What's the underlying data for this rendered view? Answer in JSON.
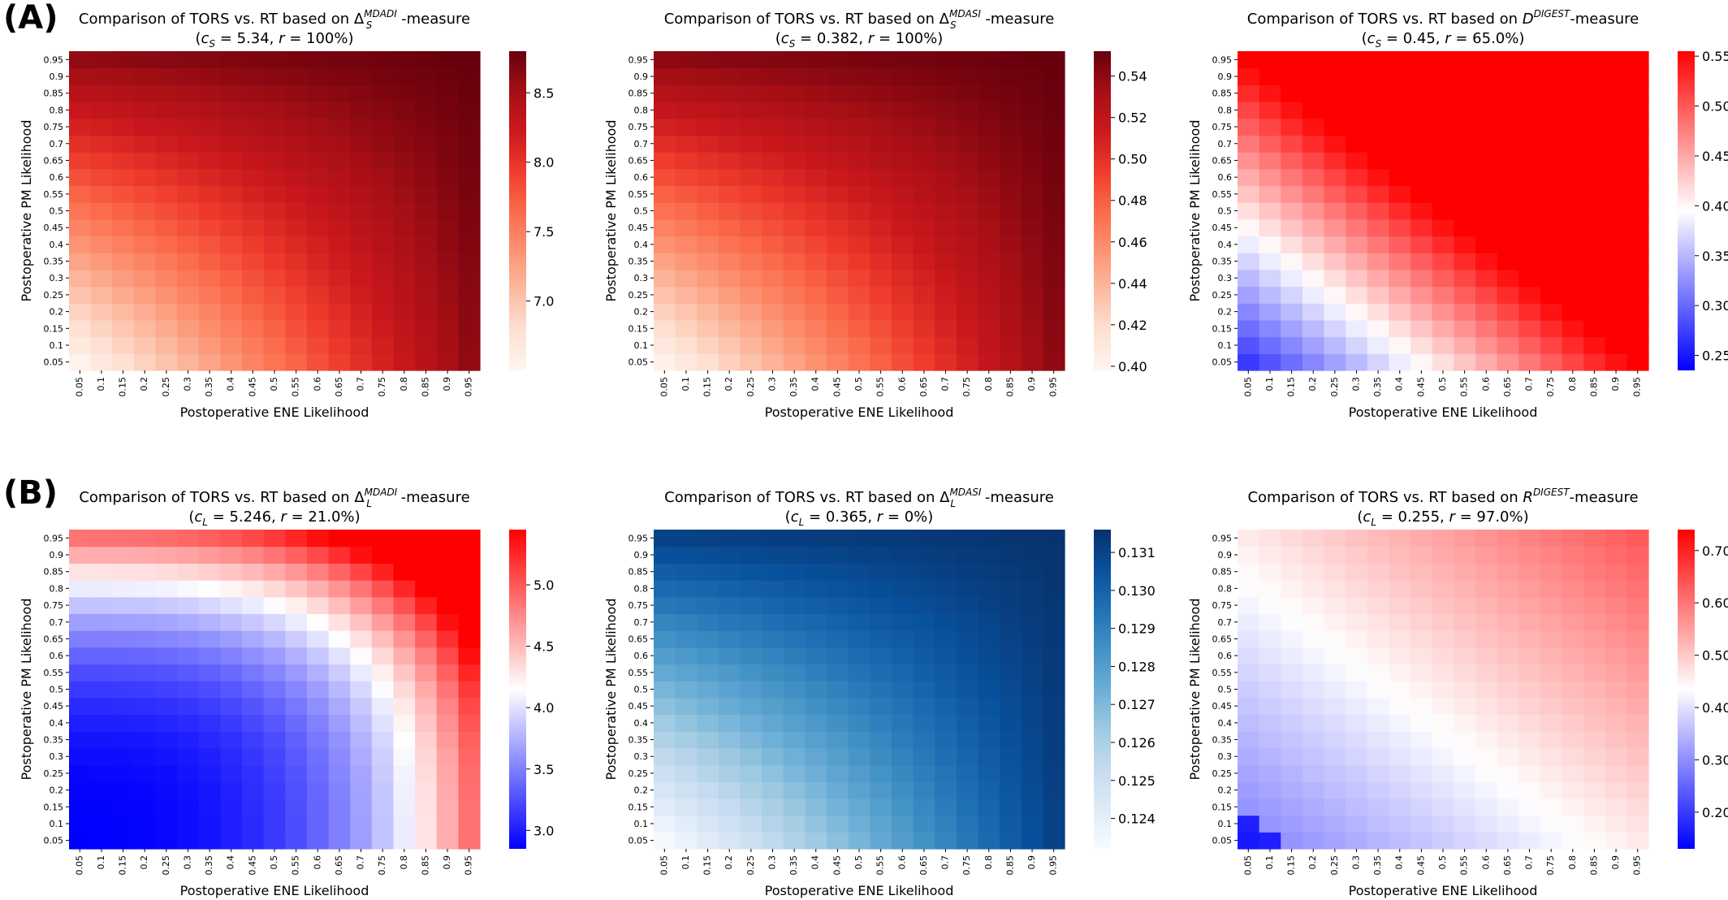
{
  "panel_labels": [
    "(A)",
    "(B)"
  ],
  "chart_data": [
    {
      "type": "heatmap",
      "title_pre": "Comparison of TORS vs. RT based on ",
      "title_sym": "Δ",
      "title_sub": "S",
      "title_sup": "MDADI",
      "title_post": "-measure",
      "subtitle_c": "c",
      "subtitle_c_sub": "S",
      "subtitle_c_val": " = 5.34, ",
      "subtitle_r": "r",
      "subtitle_r_val": " = 100%)",
      "xlabel": "Postoperative ENE Likelihood",
      "ylabel": "Postoperative PM Likelihood",
      "x": [
        "0.05",
        "0.1",
        "0.15",
        "0.2",
        "0.25",
        "0.3",
        "0.35",
        "0.4",
        "0.45",
        "0.5",
        "0.55",
        "0.6",
        "0.65",
        "0.7",
        "0.75",
        "0.8",
        "0.85",
        "0.9",
        "0.95"
      ],
      "y": [
        "0.05",
        "0.1",
        "0.15",
        "0.2",
        "0.25",
        "0.3",
        "0.35",
        "0.4",
        "0.45",
        "0.5",
        "0.55",
        "0.6",
        "0.65",
        "0.7",
        "0.75",
        "0.8",
        "0.85",
        "0.9",
        "0.95"
      ],
      "model": "bilinear",
      "corners": {
        "x0y0": 6.55,
        "x1y0": 8.6,
        "x0y1": 8.6,
        "x1y1": 8.8
      },
      "colormap": "Reds",
      "vmin": 6.5,
      "vmax": 8.8,
      "colorbar_ticks": [
        7.0,
        7.5,
        8.0,
        8.5
      ]
    },
    {
      "type": "heatmap",
      "title_pre": "Comparison of TORS vs. RT based on ",
      "title_sym": "Δ",
      "title_sub": "S",
      "title_sup": "MDASI",
      "title_post": "-measure",
      "subtitle_c": "c",
      "subtitle_c_sub": "S",
      "subtitle_c_val": " = 0.382, ",
      "subtitle_r": "r",
      "subtitle_r_val": " = 100%)",
      "xlabel": "Postoperative ENE Likelihood",
      "ylabel": "Postoperative PM Likelihood",
      "x": [
        "0.05",
        "0.1",
        "0.15",
        "0.2",
        "0.25",
        "0.3",
        "0.35",
        "0.4",
        "0.45",
        "0.5",
        "0.55",
        "0.6",
        "0.65",
        "0.7",
        "0.75",
        "0.8",
        "0.85",
        "0.9",
        "0.95"
      ],
      "y": [
        "0.05",
        "0.1",
        "0.15",
        "0.2",
        "0.25",
        "0.3",
        "0.35",
        "0.4",
        "0.45",
        "0.5",
        "0.55",
        "0.6",
        "0.65",
        "0.7",
        "0.75",
        "0.8",
        "0.85",
        "0.9",
        "0.95"
      ],
      "model": "bilinear",
      "corners": {
        "x0y0": 0.402,
        "x1y0": 0.54,
        "x0y1": 0.54,
        "x1y1": 0.552
      },
      "colormap": "Reds",
      "vmin": 0.398,
      "vmax": 0.552,
      "colorbar_ticks": [
        0.4,
        0.42,
        0.44,
        0.46,
        0.48,
        0.5,
        0.52,
        0.54
      ]
    },
    {
      "type": "heatmap",
      "title_pre": "Comparison of TORS vs. RT based on ",
      "title_sym": "D",
      "title_sub": "",
      "title_sup": "DIGEST",
      "title_post": "-measure",
      "subtitle_c": "c",
      "subtitle_c_sub": "S",
      "subtitle_c_val": " = 0.45, ",
      "subtitle_r": "r",
      "subtitle_r_val": " = 65.0%)",
      "xlabel": "Postoperative ENE Likelihood",
      "ylabel": "Postoperative PM Likelihood",
      "x": [
        "0.05",
        "0.1",
        "0.15",
        "0.2",
        "0.25",
        "0.3",
        "0.35",
        "0.4",
        "0.45",
        "0.5",
        "0.55",
        "0.6",
        "0.65",
        "0.7",
        "0.75",
        "0.8",
        "0.85",
        "0.9",
        "0.95"
      ],
      "y": [
        "0.05",
        "0.1",
        "0.15",
        "0.2",
        "0.25",
        "0.3",
        "0.35",
        "0.4",
        "0.45",
        "0.5",
        "0.55",
        "0.6",
        "0.65",
        "0.7",
        "0.75",
        "0.8",
        "0.85",
        "0.9",
        "0.95"
      ],
      "model": "sum",
      "base": 0.24,
      "scale": 0.32,
      "exponent": 1.0,
      "threshold": 0.8,
      "jump": 0.0,
      "colormap": "bwr",
      "vmin": 0.235,
      "vmax": 0.555,
      "colorbar_ticks": [
        0.25,
        0.3,
        0.35,
        0.4,
        0.45,
        0.5,
        0.55
      ]
    },
    {
      "type": "heatmap",
      "title_pre": "Comparison of TORS vs. RT based on ",
      "title_sym": "Δ",
      "title_sub": "L",
      "title_sup": "MDADI",
      "title_post": "-measure",
      "subtitle_c": "c",
      "subtitle_c_sub": "L",
      "subtitle_c_val": " = 5.246, ",
      "subtitle_r": "r",
      "subtitle_r_val": " = 21.0%)",
      "xlabel": "Postoperative ENE Likelihood",
      "ylabel": "Postoperative PM Likelihood",
      "x": [
        "0.05",
        "0.1",
        "0.15",
        "0.2",
        "0.25",
        "0.3",
        "0.35",
        "0.4",
        "0.45",
        "0.5",
        "0.55",
        "0.6",
        "0.65",
        "0.7",
        "0.75",
        "0.8",
        "0.85",
        "0.9",
        "0.95"
      ],
      "y": [
        "0.05",
        "0.1",
        "0.15",
        "0.2",
        "0.25",
        "0.3",
        "0.35",
        "0.4",
        "0.45",
        "0.5",
        "0.55",
        "0.6",
        "0.65",
        "0.7",
        "0.75",
        "0.8",
        "0.85",
        "0.9",
        "0.95"
      ],
      "model": "powersum",
      "base": 2.85,
      "scale": 2.35,
      "exponent": 3.0,
      "threshold": 0.0,
      "jump": 0.0,
      "colormap": "bwr",
      "vmin": 2.85,
      "vmax": 5.45,
      "colorbar_ticks": [
        3.0,
        3.5,
        4.0,
        4.5,
        5.0
      ]
    },
    {
      "type": "heatmap",
      "title_pre": "Comparison of TORS vs. RT based on ",
      "title_sym": "Δ",
      "title_sub": "L",
      "title_sup": "MDASI",
      "title_post": "-measure",
      "subtitle_c": "c",
      "subtitle_c_sub": "L",
      "subtitle_c_val": " = 0.365, ",
      "subtitle_r": "r",
      "subtitle_r_val": " = 0%)",
      "xlabel": "Postoperative ENE Likelihood",
      "ylabel": "Postoperative PM Likelihood",
      "x": [
        "0.05",
        "0.1",
        "0.15",
        "0.2",
        "0.25",
        "0.3",
        "0.35",
        "0.4",
        "0.45",
        "0.5",
        "0.55",
        "0.6",
        "0.65",
        "0.7",
        "0.75",
        "0.8",
        "0.85",
        "0.9",
        "0.95"
      ],
      "y": [
        "0.05",
        "0.1",
        "0.15",
        "0.2",
        "0.25",
        "0.3",
        "0.35",
        "0.4",
        "0.45",
        "0.5",
        "0.55",
        "0.6",
        "0.65",
        "0.7",
        "0.75",
        "0.8",
        "0.85",
        "0.9",
        "0.95"
      ],
      "model": "bilinear",
      "corners": {
        "x0y0": 0.1233,
        "x1y0": 0.131,
        "x0y1": 0.131,
        "x1y1": 0.1315
      },
      "colormap": "Blues",
      "vmin": 0.1232,
      "vmax": 0.1316,
      "colorbar_ticks": [
        0.124,
        0.125,
        0.126,
        0.127,
        0.128,
        0.129,
        0.13,
        0.131
      ]
    },
    {
      "type": "heatmap",
      "title_pre": "Comparison of TORS vs. RT based on ",
      "title_sym": "R",
      "title_sub": "",
      "title_sup": "DIGEST",
      "title_post": "-measure",
      "subtitle_c": "c",
      "subtitle_c_sub": "L",
      "subtitle_c_val": " = 0.255, ",
      "subtitle_r": "r",
      "subtitle_r_val": " = 97.0%)",
      "xlabel": "Postoperative ENE Likelihood",
      "ylabel": "Postoperative PM Likelihood",
      "x": [
        "0.05",
        "0.1",
        "0.15",
        "0.2",
        "0.25",
        "0.3",
        "0.35",
        "0.4",
        "0.45",
        "0.5",
        "0.55",
        "0.6",
        "0.65",
        "0.7",
        "0.75",
        "0.8",
        "0.85",
        "0.9",
        "0.95"
      ],
      "y": [
        "0.05",
        "0.1",
        "0.15",
        "0.2",
        "0.25",
        "0.3",
        "0.35",
        "0.4",
        "0.45",
        "0.5",
        "0.55",
        "0.6",
        "0.65",
        "0.7",
        "0.75",
        "0.8",
        "0.85",
        "0.9",
        "0.95"
      ],
      "model": "sum",
      "base": 0.14,
      "scale": 0.19,
      "exponent": 1.0,
      "threshold": 0.2,
      "jump": 0.13,
      "colormap": "bwr",
      "vmin": 0.13,
      "vmax": 0.74,
      "colorbar_ticks": [
        0.2,
        0.3,
        0.4,
        0.5,
        0.6,
        0.7
      ]
    }
  ]
}
